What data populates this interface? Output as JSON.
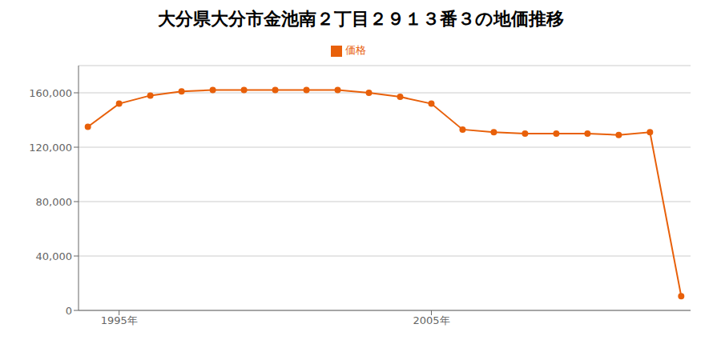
{
  "chart_data": {
    "type": "line",
    "title": "大分県大分市金池南２丁目２９１３番３の地価推移",
    "x": [
      1994,
      1995,
      1996,
      1997,
      1998,
      1999,
      2000,
      2001,
      2002,
      2003,
      2004,
      2005,
      2006,
      2007,
      2008,
      2009,
      2010,
      2011,
      2012,
      2013
    ],
    "series": [
      {
        "name": "価格",
        "color": "#e8600a",
        "marker": "circle",
        "values": [
          135000,
          152000,
          158000,
          161000,
          162000,
          162000,
          162000,
          162000,
          162000,
          160000,
          157000,
          152000,
          133000,
          131000,
          130000,
          130000,
          130000,
          129000,
          131000,
          10500
        ]
      }
    ],
    "xlim": [
      1993.7,
      2013.3
    ],
    "xticks": [
      {
        "value": 1995,
        "label": "1995年"
      },
      {
        "value": 2005,
        "label": "2005年"
      }
    ],
    "ylim": [
      0,
      180000
    ],
    "yticks": [
      0,
      {
        "value": 40000,
        "label": "40,000"
      },
      {
        "value": 80000,
        "label": "80,000"
      },
      {
        "value": 120000,
        "label": "120,000"
      },
      {
        "value": 160000,
        "label": "160,000"
      }
    ],
    "grid": true,
    "legend": "top"
  }
}
